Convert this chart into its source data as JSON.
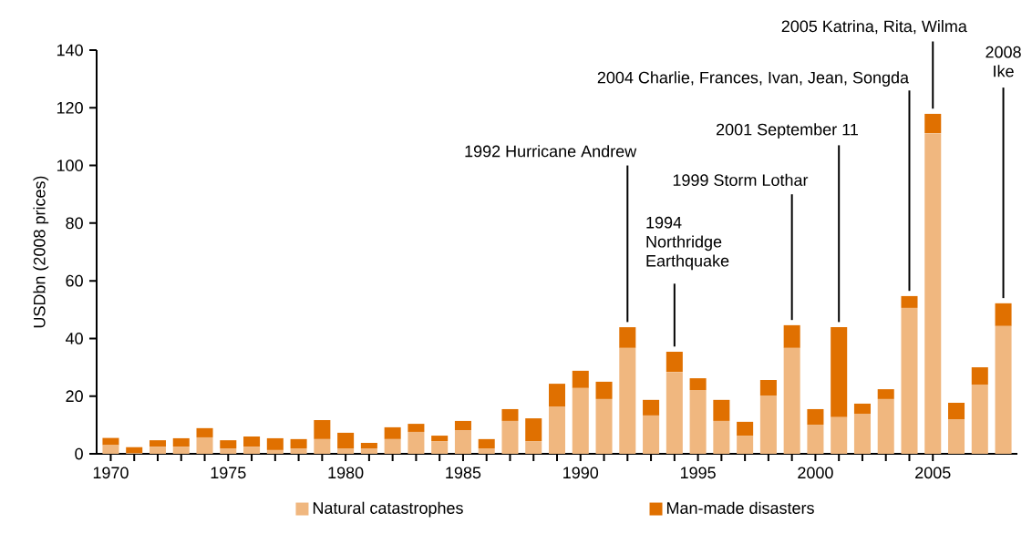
{
  "chart_data": {
    "type": "bar",
    "stacked": true,
    "ylabel": "USDbn (2008 prices)",
    "x": [
      1970,
      1971,
      1972,
      1973,
      1974,
      1975,
      1976,
      1977,
      1978,
      1979,
      1980,
      1981,
      1982,
      1983,
      1984,
      1985,
      1986,
      1987,
      1988,
      1989,
      1990,
      1991,
      1992,
      1993,
      1994,
      1995,
      1996,
      1997,
      1998,
      1999,
      2000,
      2001,
      2002,
      2003,
      2004,
      2005,
      2006,
      2007,
      2008
    ],
    "series": [
      {
        "name": "Natural catastrophes",
        "color": "#f0b77f",
        "values": [
          3,
          0.3,
          2.5,
          2.5,
          5.7,
          1.9,
          2.5,
          1.3,
          1.9,
          5.1,
          1.9,
          1.9,
          5.1,
          7.6,
          4.4,
          8.2,
          1.9,
          11.4,
          4.4,
          16.4,
          22.8,
          19,
          36.7,
          13.3,
          28.4,
          22.1,
          11.4,
          6.3,
          20.2,
          36.7,
          10.1,
          12.7,
          13.9,
          19,
          50.6,
          111.2,
          12,
          24,
          44.3
        ]
      },
      {
        "name": "Man-made disasters",
        "color": "#e07000",
        "values": [
          2.5,
          2,
          2.2,
          2.9,
          3.2,
          2.8,
          3.5,
          4.1,
          3.2,
          6.6,
          5.4,
          1.9,
          4.1,
          2.8,
          1.9,
          3.2,
          3.2,
          4.1,
          7.9,
          7.9,
          6,
          6,
          7.2,
          5.4,
          7,
          4.1,
          7.3,
          4.8,
          5.4,
          7.9,
          5.4,
          31.2,
          3.5,
          3.4,
          4.1,
          6.7,
          5.7,
          6,
          7.9
        ]
      }
    ],
    "xlim": [
      1969.4,
      2008.6
    ],
    "xticks": [
      1970,
      1975,
      1980,
      1985,
      1990,
      1995,
      2000,
      2005
    ],
    "ylim": [
      0,
      140
    ],
    "yticks": [
      0,
      20,
      40,
      60,
      80,
      100,
      120,
      140
    ],
    "legend": "bottom",
    "annotations": [
      {
        "text": "1992 Hurricane Andrew",
        "x": 1992,
        "y": 43.9
      },
      {
        "text": "1994 Northridge Earthquake",
        "x": 1994,
        "y": 35.4
      },
      {
        "text": "1999 Storm Lothar",
        "x": 1999,
        "y": 44.6
      },
      {
        "text": "2001 September 11",
        "x": 2001,
        "y": 43.9
      },
      {
        "text": "2004 Charlie, Frances, Ivan, Jean, Songda",
        "x": 2004,
        "y": 54.7
      },
      {
        "text": "2005 Katrina, Rita, Wilma",
        "x": 2005,
        "y": 117.9
      },
      {
        "text": "2008 Ike",
        "x": 2008,
        "y": 52.2
      }
    ]
  }
}
